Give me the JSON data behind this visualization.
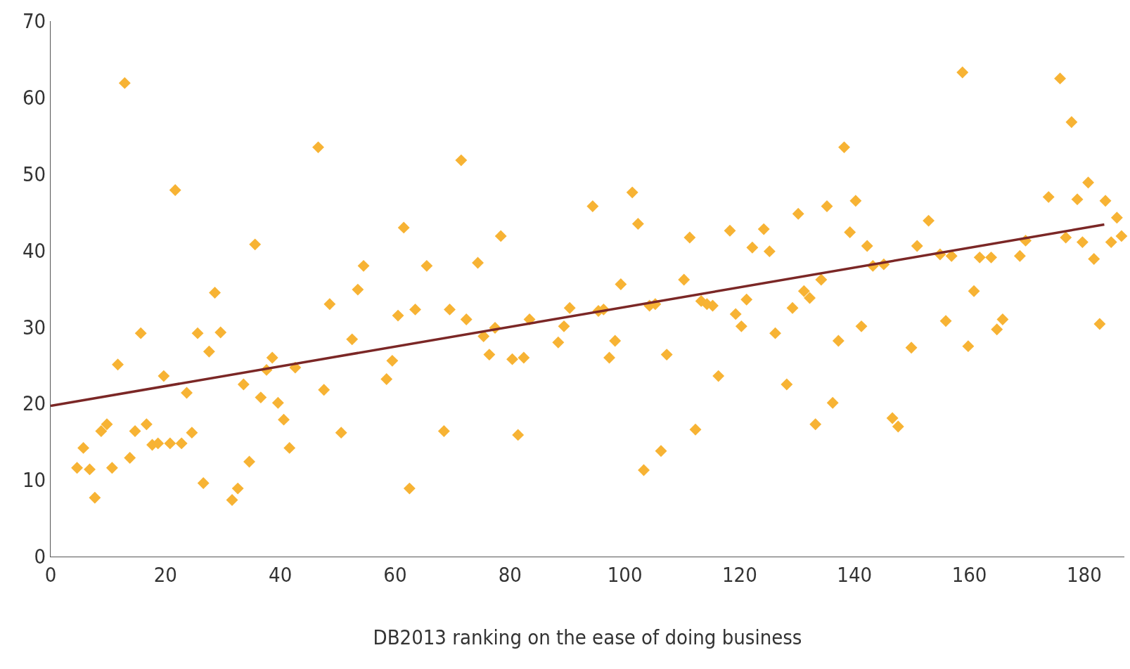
{
  "chart_data": {
    "type": "scatter",
    "xlabel": "DB2013 ranking on the ease of doing business",
    "xlim": [
      0,
      187
    ],
    "xticks": [
      0,
      20,
      40,
      60,
      80,
      100,
      120,
      140,
      160,
      180
    ],
    "ylim": [
      0,
      70
    ],
    "yticks": [
      0,
      10,
      20,
      30,
      40,
      50,
      60,
      70
    ],
    "series": [
      {
        "color": "#f7b334",
        "marker": "diamond",
        "x": [
          4.6,
          5.7,
          6.8,
          7.7,
          8.8,
          9.8,
          10.7,
          11.7,
          12.9,
          13.8,
          14.7,
          15.7,
          16.7,
          17.7,
          18.7,
          19.7,
          20.8,
          21.7,
          22.8,
          23.7,
          24.6,
          25.6,
          26.6,
          27.6,
          28.6,
          29.6,
          31.6,
          32.6,
          33.6,
          34.6,
          35.6,
          36.6,
          37.6,
          38.6,
          39.6,
          40.6,
          41.6,
          42.6,
          46.6,
          47.6,
          48.6,
          50.6,
          52.5,
          53.5,
          54.5,
          58.5,
          59.5,
          60.5,
          61.5,
          62.5,
          63.5,
          65.5,
          68.5,
          69.5,
          71.5,
          72.4,
          74.4,
          75.4,
          76.4,
          77.4,
          78.4,
          80.4,
          81.4,
          82.4,
          83.4,
          88.4,
          89.4,
          90.4,
          94.4,
          95.4,
          96.3,
          97.3,
          98.3,
          99.3,
          101.3,
          102.3,
          103.3,
          104.3,
          105.3,
          106.3,
          107.3,
          110.3,
          111.3,
          112.3,
          113.3,
          114.3,
          115.3,
          116.3,
          118.3,
          119.3,
          120.3,
          121.2,
          122.2,
          124.2,
          125.2,
          126.2,
          128.2,
          129.2,
          130.2,
          131.2,
          132.2,
          133.2,
          134.2,
          135.2,
          136.2,
          137.2,
          138.2,
          139.2,
          140.2,
          141.2,
          142.2,
          143.2,
          145.1,
          146.6,
          147.6,
          149.9,
          150.9,
          152.9,
          154.9,
          155.9,
          156.9,
          158.8,
          159.8,
          160.8,
          161.8,
          163.8,
          164.8,
          165.8,
          168.8,
          169.8,
          173.8,
          175.8,
          176.8,
          177.8,
          178.8,
          179.7,
          180.7,
          181.7,
          182.7,
          183.7,
          184.7,
          185.7,
          186.5
        ],
        "values": [
          11.6,
          14.2,
          11.4,
          7.7,
          16.4,
          17.3,
          11.6,
          25.1,
          61.9,
          12.9,
          16.4,
          29.2,
          17.3,
          14.6,
          14.8,
          23.6,
          14.8,
          47.9,
          14.8,
          21.4,
          16.2,
          29.2,
          9.6,
          26.8,
          34.5,
          29.3,
          7.4,
          8.9,
          22.5,
          12.4,
          40.8,
          20.8,
          24.4,
          26.0,
          20.1,
          17.9,
          14.2,
          24.7,
          53.5,
          21.8,
          33.0,
          16.2,
          28.4,
          34.9,
          38.0,
          23.2,
          25.6,
          31.5,
          43.0,
          8.9,
          32.3,
          38.0,
          16.4,
          32.3,
          51.8,
          31.0,
          38.4,
          28.8,
          26.4,
          29.9,
          41.9,
          25.8,
          15.9,
          26.0,
          31.0,
          28.0,
          30.1,
          32.5,
          45.8,
          32.1,
          32.3,
          26.0,
          28.2,
          35.6,
          47.6,
          43.5,
          11.3,
          32.8,
          33.0,
          13.8,
          26.4,
          36.2,
          41.7,
          16.6,
          33.4,
          33.0,
          32.8,
          23.6,
          42.6,
          31.7,
          30.1,
          33.6,
          40.4,
          42.8,
          39.9,
          29.2,
          22.5,
          32.5,
          44.8,
          34.7,
          33.8,
          17.3,
          36.2,
          45.8,
          20.1,
          28.2,
          53.5,
          42.4,
          46.5,
          30.1,
          40.6,
          38.0,
          38.2,
          18.1,
          17.0,
          27.3,
          40.6,
          43.9,
          39.5,
          30.8,
          39.3,
          63.3,
          27.5,
          34.7,
          39.1,
          39.1,
          29.7,
          31.0,
          39.3,
          41.3,
          47.0,
          62.5,
          41.7,
          56.8,
          46.7,
          41.1,
          48.9,
          38.9,
          30.4,
          46.5,
          41.1,
          44.3,
          41.9
        ]
      },
      {
        "type": "line",
        "marker": "none",
        "color": "#7b2726",
        "x": [
          0,
          183.5
        ],
        "values": [
          19.7,
          43.4
        ]
      }
    ]
  }
}
